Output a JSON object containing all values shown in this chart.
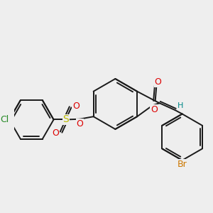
{
  "bg_color": "#eeeeee",
  "bond_color": "#1a1a1a",
  "bond_width": 1.4,
  "atom_colors": {
    "O": "#dd0000",
    "S": "#bbbb00",
    "Cl": "#228822",
    "Br": "#cc7700",
    "H": "#008888"
  }
}
